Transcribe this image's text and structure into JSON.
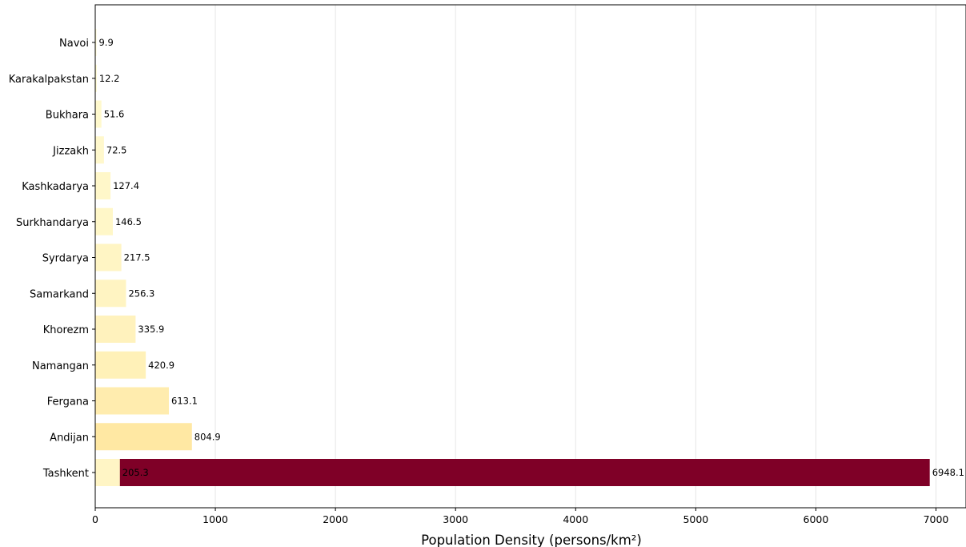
{
  "chart_data": {
    "type": "bar",
    "orientation": "horizontal",
    "title": "",
    "xlabel": "Population Density (persons/km²)",
    "ylabel": "",
    "xlim": [
      0,
      7250
    ],
    "xticks": [
      0,
      1000,
      2000,
      3000,
      4000,
      5000,
      6000,
      7000
    ],
    "grid": "vertical",
    "categories": [
      "Navoi",
      "Karakalpakstan",
      "Bukhara",
      "Jizzakh",
      "Kashkadarya",
      "Surkhandarya",
      "Syrdarya",
      "Samarkand",
      "Khorezm",
      "Namangan",
      "Fergana",
      "Andijan",
      "Tashkent"
    ],
    "values": [
      9.9,
      12.2,
      51.6,
      72.5,
      127.4,
      146.5,
      217.5,
      256.3,
      335.9,
      420.9,
      613.1,
      804.9,
      205.3
    ],
    "value_labels": [
      "9.9",
      "12.2",
      "51.6",
      "72.5",
      "127.4",
      "146.5",
      "217.5",
      "256.3",
      "335.9",
      "420.9",
      "613.1",
      "804.9",
      "205.3"
    ],
    "extra_bars": [
      {
        "category": "Tashkent",
        "value": 6948.1,
        "label": "6948.1",
        "color": "#7f0027"
      }
    ],
    "colors": {
      "low": "#fffad0",
      "high": "#ffe8a3",
      "highlight": "#7f0027",
      "grid": "#e6e6e6"
    }
  }
}
